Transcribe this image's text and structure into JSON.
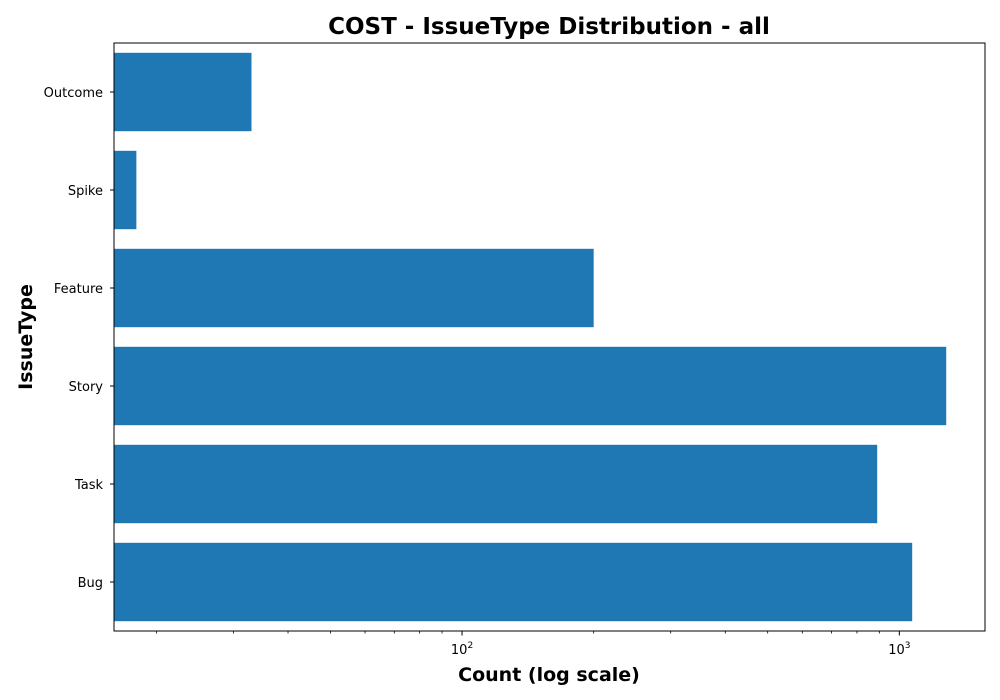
{
  "chart_data": {
    "type": "bar",
    "orientation": "horizontal",
    "title": "COST - IssueType Distribution - all",
    "xlabel": "Count (log scale)",
    "ylabel": "IssueType",
    "x_scale": "log",
    "xlim": [
      16,
      1570
    ],
    "major_ticks": [
      {
        "value": 100,
        "base": "10",
        "exponent": "2"
      },
      {
        "value": 1000,
        "base": "10",
        "exponent": "3"
      }
    ],
    "categories": [
      "Bug",
      "Task",
      "Story",
      "Feature",
      "Spike",
      "Outcome"
    ],
    "values": [
      1070,
      890,
      1280,
      200,
      18,
      33
    ],
    "bar_color": "#1f77b4",
    "grid": false
  }
}
